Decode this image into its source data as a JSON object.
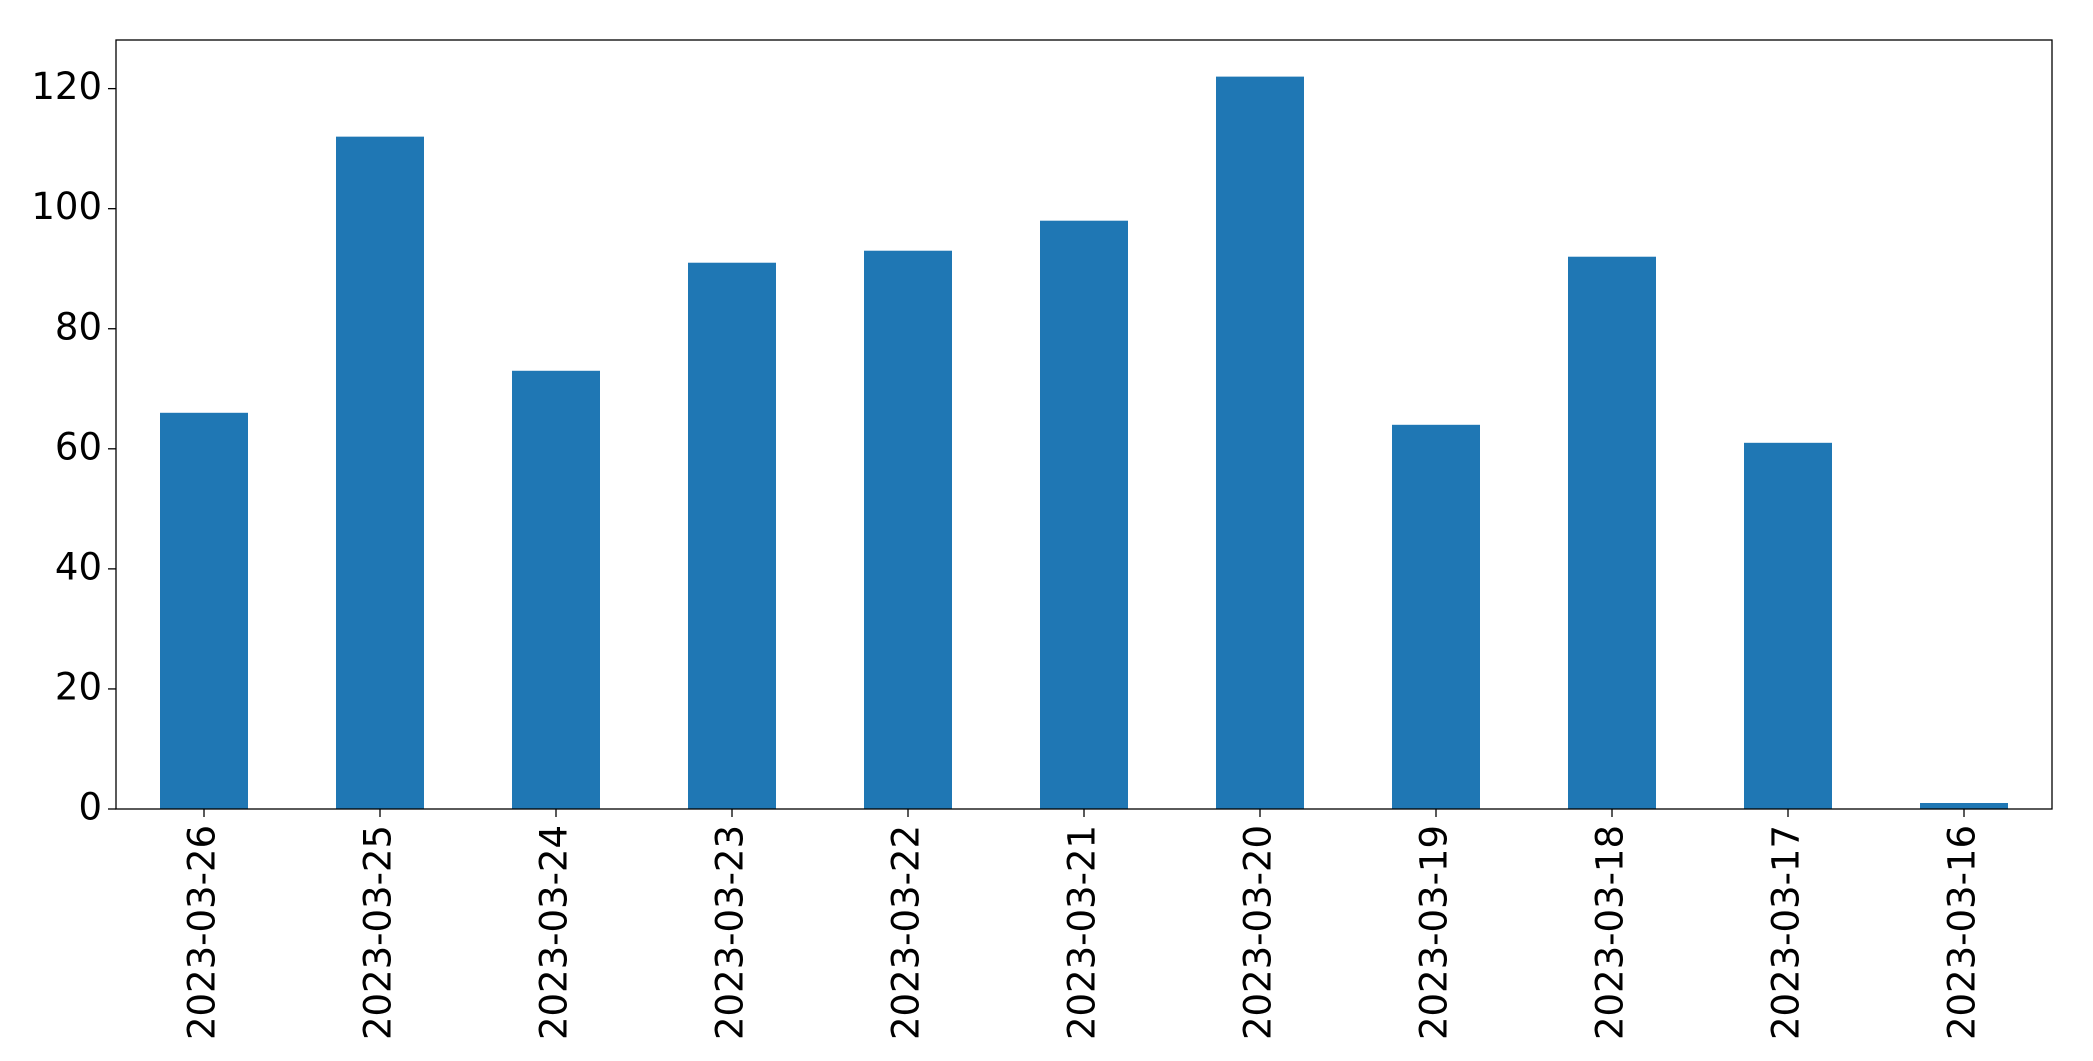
{
  "chart_data": {
    "type": "bar",
    "categories": [
      "2023-03-26",
      "2023-03-25",
      "2023-03-24",
      "2023-03-23",
      "2023-03-22",
      "2023-03-21",
      "2023-03-20",
      "2023-03-19",
      "2023-03-18",
      "2023-03-17",
      "2023-03-16"
    ],
    "values": [
      66,
      112,
      73,
      91,
      93,
      98,
      122,
      64,
      92,
      61,
      1
    ],
    "color": "#1f77b4",
    "ylim": [
      0,
      128.1
    ],
    "yticks": [
      0,
      20,
      40,
      60,
      80,
      100,
      120
    ],
    "grid": false
  }
}
